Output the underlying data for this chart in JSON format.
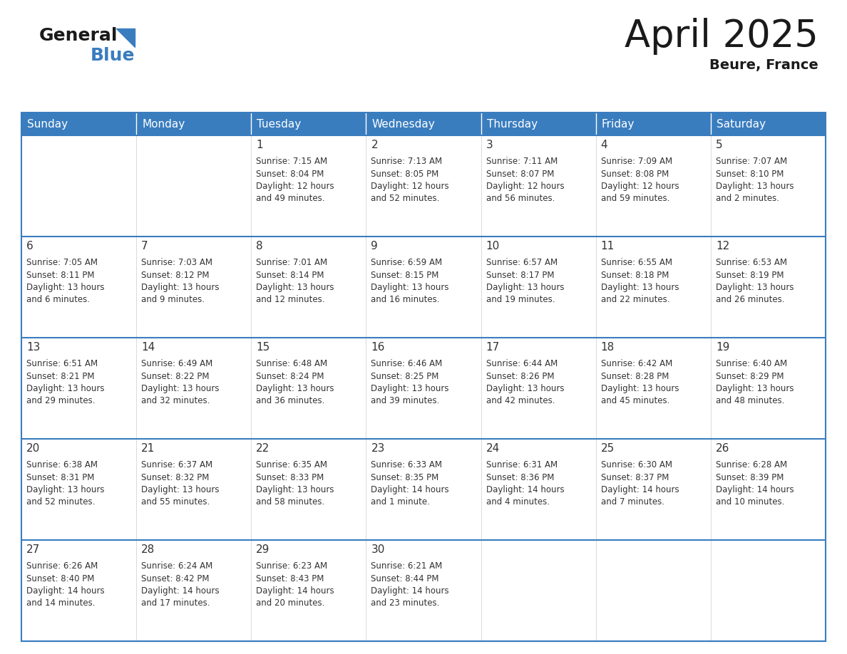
{
  "title": "April 2025",
  "subtitle": "Beure, France",
  "header_color": "#3a7dbf",
  "header_text_color": "#ffffff",
  "cell_bg_even": "#eef2f7",
  "cell_bg_odd": "#ffffff",
  "border_color": "#3a7dbf",
  "row_border_color": "#3a7dbf",
  "text_color": "#333333",
  "days_of_week": [
    "Sunday",
    "Monday",
    "Tuesday",
    "Wednesday",
    "Thursday",
    "Friday",
    "Saturday"
  ],
  "weeks": [
    [
      {
        "day": "",
        "sunrise": "",
        "sunset": "",
        "daylight": ""
      },
      {
        "day": "",
        "sunrise": "",
        "sunset": "",
        "daylight": ""
      },
      {
        "day": "1",
        "sunrise": "Sunrise: 7:15 AM",
        "sunset": "Sunset: 8:04 PM",
        "daylight": "Daylight: 12 hours\nand 49 minutes."
      },
      {
        "day": "2",
        "sunrise": "Sunrise: 7:13 AM",
        "sunset": "Sunset: 8:05 PM",
        "daylight": "Daylight: 12 hours\nand 52 minutes."
      },
      {
        "day": "3",
        "sunrise": "Sunrise: 7:11 AM",
        "sunset": "Sunset: 8:07 PM",
        "daylight": "Daylight: 12 hours\nand 56 minutes."
      },
      {
        "day": "4",
        "sunrise": "Sunrise: 7:09 AM",
        "sunset": "Sunset: 8:08 PM",
        "daylight": "Daylight: 12 hours\nand 59 minutes."
      },
      {
        "day": "5",
        "sunrise": "Sunrise: 7:07 AM",
        "sunset": "Sunset: 8:10 PM",
        "daylight": "Daylight: 13 hours\nand 2 minutes."
      }
    ],
    [
      {
        "day": "6",
        "sunrise": "Sunrise: 7:05 AM",
        "sunset": "Sunset: 8:11 PM",
        "daylight": "Daylight: 13 hours\nand 6 minutes."
      },
      {
        "day": "7",
        "sunrise": "Sunrise: 7:03 AM",
        "sunset": "Sunset: 8:12 PM",
        "daylight": "Daylight: 13 hours\nand 9 minutes."
      },
      {
        "day": "8",
        "sunrise": "Sunrise: 7:01 AM",
        "sunset": "Sunset: 8:14 PM",
        "daylight": "Daylight: 13 hours\nand 12 minutes."
      },
      {
        "day": "9",
        "sunrise": "Sunrise: 6:59 AM",
        "sunset": "Sunset: 8:15 PM",
        "daylight": "Daylight: 13 hours\nand 16 minutes."
      },
      {
        "day": "10",
        "sunrise": "Sunrise: 6:57 AM",
        "sunset": "Sunset: 8:17 PM",
        "daylight": "Daylight: 13 hours\nand 19 minutes."
      },
      {
        "day": "11",
        "sunrise": "Sunrise: 6:55 AM",
        "sunset": "Sunset: 8:18 PM",
        "daylight": "Daylight: 13 hours\nand 22 minutes."
      },
      {
        "day": "12",
        "sunrise": "Sunrise: 6:53 AM",
        "sunset": "Sunset: 8:19 PM",
        "daylight": "Daylight: 13 hours\nand 26 minutes."
      }
    ],
    [
      {
        "day": "13",
        "sunrise": "Sunrise: 6:51 AM",
        "sunset": "Sunset: 8:21 PM",
        "daylight": "Daylight: 13 hours\nand 29 minutes."
      },
      {
        "day": "14",
        "sunrise": "Sunrise: 6:49 AM",
        "sunset": "Sunset: 8:22 PM",
        "daylight": "Daylight: 13 hours\nand 32 minutes."
      },
      {
        "day": "15",
        "sunrise": "Sunrise: 6:48 AM",
        "sunset": "Sunset: 8:24 PM",
        "daylight": "Daylight: 13 hours\nand 36 minutes."
      },
      {
        "day": "16",
        "sunrise": "Sunrise: 6:46 AM",
        "sunset": "Sunset: 8:25 PM",
        "daylight": "Daylight: 13 hours\nand 39 minutes."
      },
      {
        "day": "17",
        "sunrise": "Sunrise: 6:44 AM",
        "sunset": "Sunset: 8:26 PM",
        "daylight": "Daylight: 13 hours\nand 42 minutes."
      },
      {
        "day": "18",
        "sunrise": "Sunrise: 6:42 AM",
        "sunset": "Sunset: 8:28 PM",
        "daylight": "Daylight: 13 hours\nand 45 minutes."
      },
      {
        "day": "19",
        "sunrise": "Sunrise: 6:40 AM",
        "sunset": "Sunset: 8:29 PM",
        "daylight": "Daylight: 13 hours\nand 48 minutes."
      }
    ],
    [
      {
        "day": "20",
        "sunrise": "Sunrise: 6:38 AM",
        "sunset": "Sunset: 8:31 PM",
        "daylight": "Daylight: 13 hours\nand 52 minutes."
      },
      {
        "day": "21",
        "sunrise": "Sunrise: 6:37 AM",
        "sunset": "Sunset: 8:32 PM",
        "daylight": "Daylight: 13 hours\nand 55 minutes."
      },
      {
        "day": "22",
        "sunrise": "Sunrise: 6:35 AM",
        "sunset": "Sunset: 8:33 PM",
        "daylight": "Daylight: 13 hours\nand 58 minutes."
      },
      {
        "day": "23",
        "sunrise": "Sunrise: 6:33 AM",
        "sunset": "Sunset: 8:35 PM",
        "daylight": "Daylight: 14 hours\nand 1 minute."
      },
      {
        "day": "24",
        "sunrise": "Sunrise: 6:31 AM",
        "sunset": "Sunset: 8:36 PM",
        "daylight": "Daylight: 14 hours\nand 4 minutes."
      },
      {
        "day": "25",
        "sunrise": "Sunrise: 6:30 AM",
        "sunset": "Sunset: 8:37 PM",
        "daylight": "Daylight: 14 hours\nand 7 minutes."
      },
      {
        "day": "26",
        "sunrise": "Sunrise: 6:28 AM",
        "sunset": "Sunset: 8:39 PM",
        "daylight": "Daylight: 14 hours\nand 10 minutes."
      }
    ],
    [
      {
        "day": "27",
        "sunrise": "Sunrise: 6:26 AM",
        "sunset": "Sunset: 8:40 PM",
        "daylight": "Daylight: 14 hours\nand 14 minutes."
      },
      {
        "day": "28",
        "sunrise": "Sunrise: 6:24 AM",
        "sunset": "Sunset: 8:42 PM",
        "daylight": "Daylight: 14 hours\nand 17 minutes."
      },
      {
        "day": "29",
        "sunrise": "Sunrise: 6:23 AM",
        "sunset": "Sunset: 8:43 PM",
        "daylight": "Daylight: 14 hours\nand 20 minutes."
      },
      {
        "day": "30",
        "sunrise": "Sunrise: 6:21 AM",
        "sunset": "Sunset: 8:44 PM",
        "daylight": "Daylight: 14 hours\nand 23 minutes."
      },
      {
        "day": "",
        "sunrise": "",
        "sunset": "",
        "daylight": ""
      },
      {
        "day": "",
        "sunrise": "",
        "sunset": "",
        "daylight": ""
      },
      {
        "day": "",
        "sunrise": "",
        "sunset": "",
        "daylight": ""
      }
    ]
  ]
}
